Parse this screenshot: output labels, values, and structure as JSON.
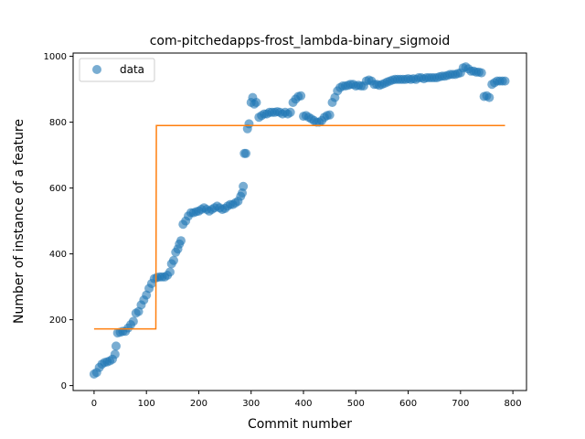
{
  "chart_data": {
    "type": "scatter",
    "title": "com-pitchedapps-frost_lambda-binary_sigmoid",
    "xlabel": "Commit number",
    "ylabel": "Number of instance of a feature",
    "xlim": [
      -40,
      826
    ],
    "ylim": [
      -15,
      1010
    ],
    "xticks": [
      0,
      100,
      200,
      300,
      400,
      500,
      600,
      700,
      800
    ],
    "yticks": [
      0,
      200,
      400,
      600,
      800,
      1000
    ],
    "grid": false,
    "legend_position": "top-left",
    "series": [
      {
        "name": "data",
        "kind": "scatter",
        "color": "#1f77b4",
        "points": [
          [
            0,
            35
          ],
          [
            5,
            40
          ],
          [
            10,
            55
          ],
          [
            15,
            65
          ],
          [
            20,
            70
          ],
          [
            25,
            72
          ],
          [
            30,
            75
          ],
          [
            35,
            80
          ],
          [
            40,
            95
          ],
          [
            42,
            120
          ],
          [
            45,
            160
          ],
          [
            50,
            162
          ],
          [
            55,
            165
          ],
          [
            60,
            165
          ],
          [
            65,
            175
          ],
          [
            70,
            185
          ],
          [
            75,
            195
          ],
          [
            80,
            220
          ],
          [
            85,
            225
          ],
          [
            90,
            245
          ],
          [
            95,
            260
          ],
          [
            100,
            275
          ],
          [
            105,
            295
          ],
          [
            110,
            310
          ],
          [
            115,
            325
          ],
          [
            120,
            328
          ],
          [
            125,
            330
          ],
          [
            130,
            330
          ],
          [
            135,
            330
          ],
          [
            140,
            335
          ],
          [
            145,
            345
          ],
          [
            148,
            370
          ],
          [
            152,
            380
          ],
          [
            156,
            405
          ],
          [
            160,
            415
          ],
          [
            163,
            430
          ],
          [
            166,
            440
          ],
          [
            170,
            490
          ],
          [
            175,
            500
          ],
          [
            180,
            515
          ],
          [
            185,
            525
          ],
          [
            190,
            525
          ],
          [
            195,
            528
          ],
          [
            200,
            530
          ],
          [
            205,
            535
          ],
          [
            210,
            540
          ],
          [
            215,
            535
          ],
          [
            220,
            530
          ],
          [
            225,
            535
          ],
          [
            230,
            540
          ],
          [
            235,
            545
          ],
          [
            240,
            540
          ],
          [
            245,
            535
          ],
          [
            250,
            538
          ],
          [
            255,
            545
          ],
          [
            260,
            550
          ],
          [
            265,
            550
          ],
          [
            270,
            555
          ],
          [
            275,
            560
          ],
          [
            280,
            575
          ],
          [
            283,
            585
          ],
          [
            285,
            605
          ],
          [
            287,
            705
          ],
          [
            290,
            705
          ],
          [
            293,
            780
          ],
          [
            296,
            795
          ],
          [
            300,
            860
          ],
          [
            303,
            875
          ],
          [
            306,
            855
          ],
          [
            310,
            860
          ],
          [
            315,
            815
          ],
          [
            320,
            820
          ],
          [
            325,
            825
          ],
          [
            330,
            825
          ],
          [
            335,
            830
          ],
          [
            340,
            830
          ],
          [
            345,
            830
          ],
          [
            350,
            832
          ],
          [
            355,
            830
          ],
          [
            360,
            825
          ],
          [
            365,
            830
          ],
          [
            370,
            825
          ],
          [
            375,
            830
          ],
          [
            380,
            860
          ],
          [
            385,
            870
          ],
          [
            390,
            878
          ],
          [
            395,
            880
          ],
          [
            400,
            818
          ],
          [
            405,
            820
          ],
          [
            410,
            815
          ],
          [
            415,
            810
          ],
          [
            420,
            805
          ],
          [
            425,
            800
          ],
          [
            430,
            800
          ],
          [
            435,
            805
          ],
          [
            440,
            815
          ],
          [
            445,
            820
          ],
          [
            450,
            822
          ],
          [
            455,
            860
          ],
          [
            460,
            875
          ],
          [
            465,
            895
          ],
          [
            470,
            905
          ],
          [
            475,
            910
          ],
          [
            480,
            910
          ],
          [
            485,
            912
          ],
          [
            490,
            915
          ],
          [
            495,
            915
          ],
          [
            500,
            910
          ],
          [
            505,
            912
          ],
          [
            510,
            910
          ],
          [
            515,
            910
          ],
          [
            520,
            925
          ],
          [
            525,
            928
          ],
          [
            530,
            925
          ],
          [
            535,
            915
          ],
          [
            540,
            915
          ],
          [
            545,
            912
          ],
          [
            550,
            915
          ],
          [
            555,
            918
          ],
          [
            560,
            922
          ],
          [
            565,
            925
          ],
          [
            570,
            928
          ],
          [
            575,
            930
          ],
          [
            580,
            930
          ],
          [
            585,
            930
          ],
          [
            590,
            930
          ],
          [
            595,
            930
          ],
          [
            600,
            932
          ],
          [
            605,
            930
          ],
          [
            610,
            932
          ],
          [
            615,
            930
          ],
          [
            620,
            935
          ],
          [
            625,
            935
          ],
          [
            630,
            932
          ],
          [
            635,
            935
          ],
          [
            640,
            935
          ],
          [
            645,
            935
          ],
          [
            650,
            935
          ],
          [
            655,
            935
          ],
          [
            660,
            938
          ],
          [
            665,
            940
          ],
          [
            670,
            940
          ],
          [
            675,
            942
          ],
          [
            680,
            945
          ],
          [
            685,
            945
          ],
          [
            690,
            945
          ],
          [
            695,
            948
          ],
          [
            700,
            950
          ],
          [
            705,
            965
          ],
          [
            710,
            968
          ],
          [
            715,
            962
          ],
          [
            720,
            955
          ],
          [
            725,
            955
          ],
          [
            730,
            952
          ],
          [
            735,
            952
          ],
          [
            740,
            950
          ],
          [
            745,
            878
          ],
          [
            750,
            880
          ],
          [
            755,
            875
          ],
          [
            760,
            915
          ],
          [
            765,
            920
          ],
          [
            770,
            925
          ],
          [
            775,
            925
          ],
          [
            780,
            925
          ],
          [
            785,
            925
          ]
        ]
      },
      {
        "kind": "line",
        "color": "#ff7f0e",
        "points": [
          [
            0,
            172
          ],
          [
            118,
            172
          ],
          [
            119,
            790
          ],
          [
            785,
            790
          ]
        ]
      }
    ]
  }
}
